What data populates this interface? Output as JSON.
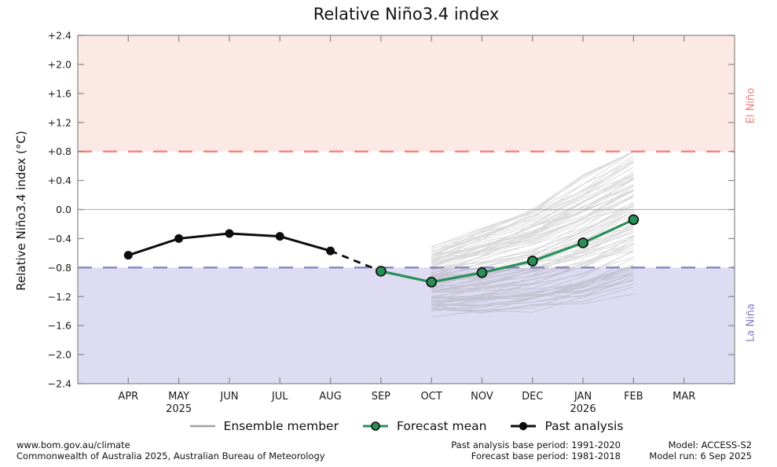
{
  "title": "Relative Niño3.4 index",
  "y_axis_label": "Relative Niño3.4 index (°C)",
  "region_labels": {
    "el_nino": "El Niño",
    "la_nina": "La Niña"
  },
  "colors": {
    "el_nino_band": "#fce8e4",
    "la_nina_band": "#dedcf2",
    "el_nino_line": "#f4817a",
    "la_nina_line": "#8784c7",
    "el_nino_text": "#ef7d74",
    "la_nina_text": "#7f7bc0",
    "forecast_green": "#2a8f57",
    "past_black": "#0d0d0d",
    "ensemble_gray": "#8c8c8c",
    "zero_line": "#b8b8b8",
    "frame_gray": "#8e8e8e",
    "text": "#1a1a1a"
  },
  "chart_data": {
    "type": "line",
    "title": "Relative Niño3.4 index",
    "xlabel": "",
    "ylabel": "Relative Niño3.4 index (°C)",
    "ylim": [
      -2.4,
      2.4
    ],
    "grid": false,
    "months": [
      "APR",
      "MAY",
      "JUN",
      "JUL",
      "AUG",
      "SEP",
      "OCT",
      "NOV",
      "DEC",
      "JAN",
      "FEB",
      "MAR"
    ],
    "x_sublabels": {
      "MAY": "2025",
      "JAN": "2026"
    },
    "yticks": [
      {
        "v": 2.4,
        "label": "+2.4"
      },
      {
        "v": 2.0,
        "label": "+2.0"
      },
      {
        "v": 1.6,
        "label": "+1.6"
      },
      {
        "v": 1.2,
        "label": "+1.2"
      },
      {
        "v": 0.8,
        "label": "+0.8"
      },
      {
        "v": 0.4,
        "label": "+0.4"
      },
      {
        "v": 0.0,
        "label": "0.0"
      },
      {
        "v": -0.4,
        "label": "−0.4"
      },
      {
        "v": -0.8,
        "label": "−0.8"
      },
      {
        "v": -1.2,
        "label": "−1.2"
      },
      {
        "v": -1.6,
        "label": "−1.6"
      },
      {
        "v": -2.0,
        "label": "−2.0"
      },
      {
        "v": -2.4,
        "label": "−2.4"
      }
    ],
    "el_nino_threshold": 0.8,
    "la_nina_threshold": -0.8,
    "series": [
      {
        "name": "Past analysis",
        "x": [
          "APR",
          "MAY",
          "JUN",
          "JUL",
          "AUG"
        ],
        "values": [
          -0.63,
          -0.4,
          -0.33,
          -0.37,
          -0.57
        ]
      },
      {
        "name": "Forecast mean",
        "x": [
          "SEP",
          "OCT",
          "NOV",
          "DEC",
          "JAN",
          "FEB"
        ],
        "values": [
          -0.85,
          -1.0,
          -0.87,
          -0.71,
          -0.46,
          -0.14
        ]
      }
    ],
    "dashed_connector": {
      "x": [
        "AUG",
        "SEP"
      ],
      "values": [
        -0.57,
        -0.85
      ]
    },
    "ensemble": {
      "x": [
        "OCT",
        "NOV",
        "DEC",
        "JAN",
        "FEB"
      ],
      "count": 90,
      "center": [
        -1.0,
        -0.87,
        -0.71,
        -0.46,
        -0.14
      ],
      "spread": [
        0.45,
        0.58,
        0.7,
        0.85,
        0.95
      ],
      "clamp": [
        -1.48,
        0.8
      ],
      "seed": 42
    },
    "legend_position": "bottom"
  },
  "legend": [
    {
      "label": "Ensemble member"
    },
    {
      "label": "Forecast mean"
    },
    {
      "label": "Past analysis"
    }
  ],
  "footer": {
    "left_line1": "www.bom.gov.au/climate",
    "left_line2": "Commonwealth of Australia 2025, Australian Bureau of Meteorology",
    "center_line1": "Past analysis base period: 1991-2020",
    "center_line2": "Forecast base period: 1981-2018",
    "right_line1": "Model: ACCESS-S2",
    "right_line2": "Model run: 6 Sep 2025"
  }
}
